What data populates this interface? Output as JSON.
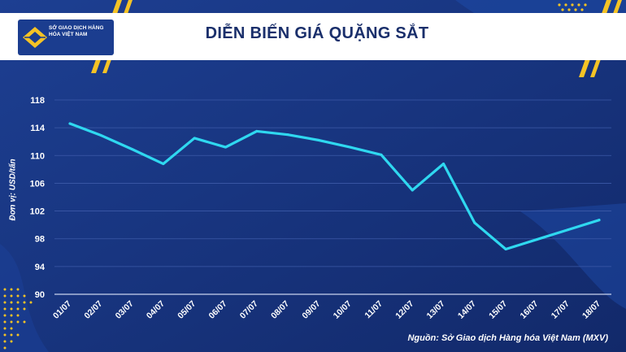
{
  "header": {
    "title": "DIỄN BIẾN GIÁ QUẶNG SẮT",
    "logo_text": "SỞ GIAO DỊCH HÀNG HÓA VIỆT NAM",
    "logo_icon": "mxv-logo-icon"
  },
  "footer": {
    "source": "Nguồn: Sở Giao dịch Hàng hóa Việt Nam (MXV)"
  },
  "colors": {
    "background": "#15327a",
    "line": "#2fd8f0",
    "accent": "#f5c325",
    "header_bg": "#ffffff",
    "title": "#1a2f6b"
  },
  "chart_data": {
    "type": "line",
    "title": "DIỄN BIẾN GIÁ QUẶNG SẮT",
    "xlabel": "",
    "ylabel": "Đơn vị: USD/tấn",
    "categories": [
      "01/07",
      "02/07",
      "03/07",
      "04/07",
      "05/07",
      "06/07",
      "07/07",
      "08/07",
      "09/07",
      "10/07",
      "11/07",
      "12/07",
      "13/07",
      "14/07",
      "15/07",
      "16/07",
      "17/07",
      "18/07"
    ],
    "series": [
      {
        "values": [
          114.6,
          112.9,
          110.9,
          108.8,
          112.5,
          111.2,
          113.5,
          113.0,
          112.2,
          111.2,
          110.1,
          105.0,
          108.8,
          100.3,
          96.5,
          97.9,
          99.3,
          100.7
        ]
      }
    ],
    "ylim": [
      90,
      118
    ],
    "yticks": [
      "90",
      "94",
      "98",
      "102",
      "106",
      "110",
      "114",
      "118"
    ],
    "grid": true,
    "legend": "none"
  }
}
